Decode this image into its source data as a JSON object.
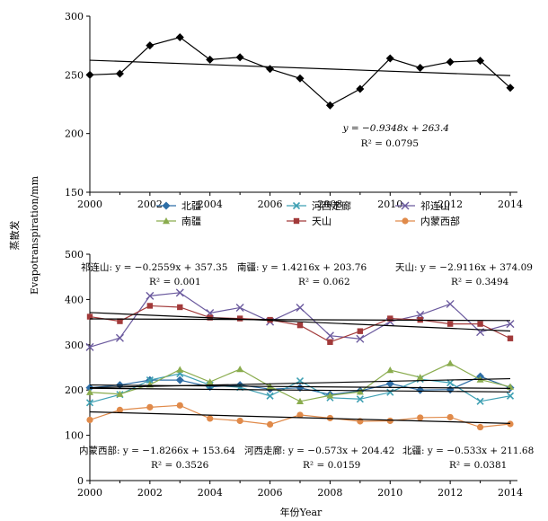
{
  "ylabel_cn": "蒸散发",
  "ylabel_en": "Evapotranspiration/mm",
  "xlabel": "年份Year",
  "chart_data": [
    {
      "type": "line",
      "x": [
        2000,
        2001,
        2002,
        2003,
        2004,
        2005,
        2006,
        2007,
        2008,
        2009,
        2010,
        2011,
        2012,
        2013,
        2014
      ],
      "xticks": [
        2000,
        2002,
        2004,
        2006,
        2008,
        2010,
        2012,
        2014
      ],
      "ylim": [
        150,
        300
      ],
      "yticks": [
        150,
        200,
        250,
        300
      ],
      "series": [
        {
          "name": "",
          "color": "#000000",
          "marker": "diamond",
          "values": [
            250,
            251,
            275,
            282,
            263,
            265,
            255,
            247,
            224,
            238,
            264,
            256,
            261,
            262,
            239
          ]
        }
      ],
      "annotations": [
        {
          "text": "y = −0.9348x + 263.4",
          "anchor": "center-right"
        },
        {
          "text": "R² = 0.0795",
          "anchor": "center-right"
        }
      ],
      "trend": {
        "slope": -0.9348,
        "intercept": 263.4
      }
    },
    {
      "type": "line",
      "x": [
        2000,
        2001,
        2002,
        2003,
        2004,
        2005,
        2006,
        2007,
        2008,
        2009,
        2010,
        2011,
        2012,
        2013,
        2014
      ],
      "xticks": [
        2000,
        2002,
        2004,
        2006,
        2008,
        2010,
        2012,
        2014
      ],
      "ylim": [
        0,
        500
      ],
      "yticks": [
        0,
        100,
        200,
        300,
        400,
        500
      ],
      "legend": "top",
      "series": [
        {
          "name": "北疆",
          "color": "#2e6ea6",
          "marker": "diamond",
          "values": [
            205,
            211,
            222,
            222,
            207,
            211,
            202,
            205,
            190,
            198,
            214,
            200,
            201,
            230,
            205
          ],
          "trend": {
            "slope": -0.533,
            "intercept": 211.68
          }
        },
        {
          "name": "河西走廊",
          "color": "#3fa0b3",
          "marker": "x",
          "values": [
            172,
            190,
            222,
            236,
            211,
            206,
            187,
            220,
            183,
            180,
            195,
            224,
            216,
            175,
            187
          ],
          "trend": {
            "slope": -0.573,
            "intercept": 204.42
          }
        },
        {
          "name": "祁连山",
          "color": "#6b5a9e",
          "marker": "xstar",
          "values": [
            295,
            315,
            408,
            415,
            370,
            382,
            351,
            382,
            320,
            313,
            351,
            366,
            390,
            328,
            346
          ],
          "trend": {
            "slope": -0.2559,
            "intercept": 357.35
          }
        },
        {
          "name": "南疆",
          "color": "#8aac4e",
          "marker": "triangle",
          "values": [
            195,
            191,
            212,
            245,
            218,
            246,
            208,
            175,
            188,
            196,
            244,
            228,
            259,
            223,
            207
          ],
          "trend": {
            "slope": 1.4216,
            "intercept": 203.76
          }
        },
        {
          "name": "天山",
          "color": "#a23a3a",
          "marker": "square",
          "values": [
            362,
            352,
            386,
            383,
            360,
            358,
            355,
            343,
            306,
            330,
            358,
            355,
            346,
            346,
            314
          ],
          "trend": {
            "slope": -2.9116,
            "intercept": 374.09
          }
        },
        {
          "name": "内蒙西部",
          "color": "#e08a4a",
          "marker": "circle",
          "values": [
            134,
            156,
            162,
            166,
            137,
            132,
            124,
            145,
            138,
            131,
            132,
            139,
            140,
            118,
            125
          ],
          "trend": {
            "slope": -1.8266,
            "intercept": 153.64
          }
        }
      ],
      "annotations": [
        {
          "text": "祁连山: y = −0.2559x + 357.35",
          "anchor": "top-left"
        },
        {
          "text": "R² = 0.001",
          "anchor": "top-left"
        },
        {
          "text": "南疆: y = 1.4216x + 203.76",
          "anchor": "top-center"
        },
        {
          "text": "R² = 0.062",
          "anchor": "top-center"
        },
        {
          "text": "天山: y = −2.9116x + 374.09",
          "anchor": "top-right"
        },
        {
          "text": "R² = 0.3494",
          "anchor": "top-right"
        },
        {
          "text": "内蒙西部: y = −1.8266x + 153.64",
          "anchor": "bottom-left"
        },
        {
          "text": "R² = 0.3526",
          "anchor": "bottom-left"
        },
        {
          "text": "河西走廊: y = −0.573x + 204.42",
          "anchor": "bottom-center"
        },
        {
          "text": "R² = 0.0159",
          "anchor": "bottom-center"
        },
        {
          "text": "北疆: y = −0.533x + 211.68",
          "anchor": "bottom-right"
        },
        {
          "text": "R² = 0.0381",
          "anchor": "bottom-right"
        }
      ]
    }
  ]
}
